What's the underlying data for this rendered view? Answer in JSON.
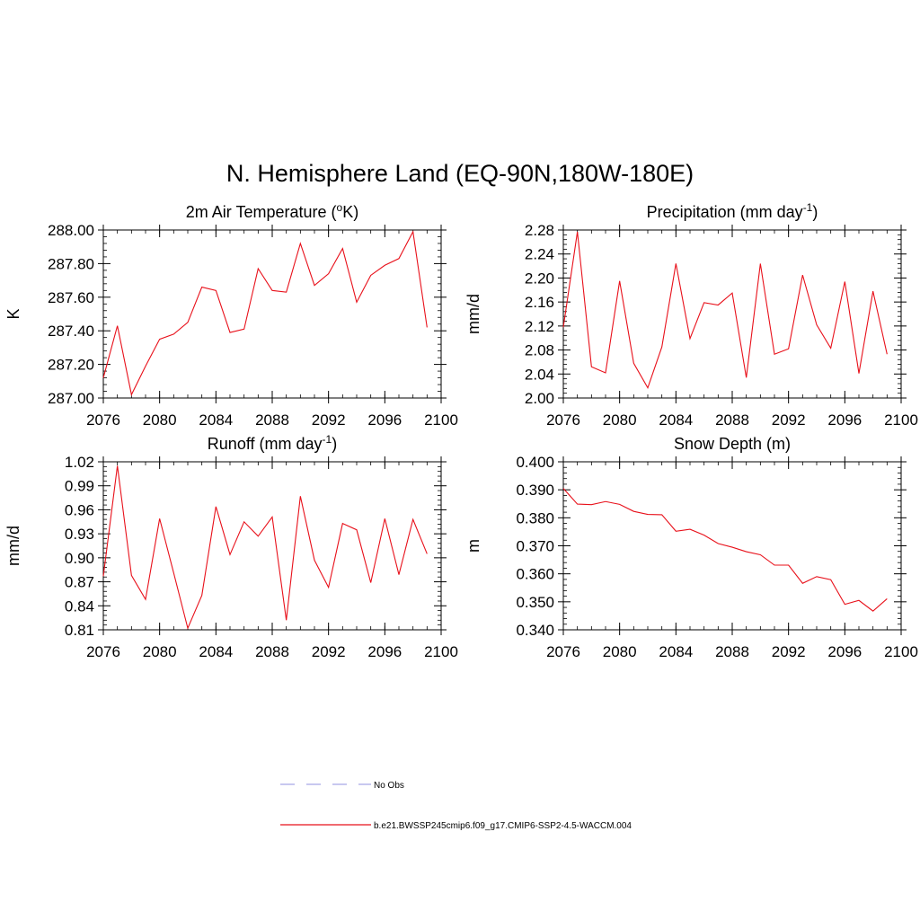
{
  "figure": {
    "title": "N. Hemisphere Land (EQ-90N,180W-180E)"
  },
  "colors": {
    "model_line": "#e8101a",
    "obs_line": "#a7a7e6",
    "axis": "#000000",
    "background": "#ffffff"
  },
  "chart_data": [
    {
      "type": "line",
      "id": "tas",
      "title": "2m Air Temperature (",
      "title_sup": "o",
      "title_tail": "K)",
      "xlabel": "",
      "ylabel": "K",
      "xlim": [
        2076,
        2100
      ],
      "ylim": [
        287.0,
        288.0
      ],
      "xticks": [
        2076,
        2080,
        2084,
        2088,
        2092,
        2096,
        2100
      ],
      "yticks": [
        287.0,
        287.2,
        287.4,
        287.6,
        287.8,
        288.0
      ],
      "ytick_labels": [
        "287.00",
        "287.20",
        "287.40",
        "287.60",
        "287.80",
        "288.00"
      ],
      "x": [
        2076,
        2077,
        2078,
        2079,
        2080,
        2081,
        2082,
        2083,
        2084,
        2085,
        2086,
        2087,
        2088,
        2089,
        2090,
        2091,
        2092,
        2093,
        2094,
        2095,
        2096,
        2097,
        2098,
        2099
      ],
      "series": [
        {
          "values": [
            287.12,
            287.43,
            287.02,
            287.19,
            287.35,
            287.38,
            287.45,
            287.66,
            287.64,
            287.39,
            287.41,
            287.77,
            287.64,
            287.63,
            287.92,
            287.67,
            287.74,
            287.89,
            287.57,
            287.73,
            287.79,
            287.83,
            287.99,
            287.42
          ]
        }
      ]
    },
    {
      "type": "line",
      "id": "precip",
      "title": "Precipitation (mm day",
      "title_sup": "-1",
      "title_tail": ")",
      "xlabel": "",
      "ylabel": "mm/d",
      "xlim": [
        2076,
        2100
      ],
      "ylim": [
        2.0,
        2.28
      ],
      "xticks": [
        2076,
        2080,
        2084,
        2088,
        2092,
        2096,
        2100
      ],
      "yticks": [
        2.0,
        2.04,
        2.08,
        2.12,
        2.16,
        2.2,
        2.24,
        2.28
      ],
      "ytick_labels": [
        "2.00",
        "2.04",
        "2.08",
        "2.12",
        "2.16",
        "2.20",
        "2.24",
        "2.28"
      ],
      "x": [
        2076,
        2077,
        2078,
        2079,
        2080,
        2081,
        2082,
        2083,
        2084,
        2085,
        2086,
        2087,
        2088,
        2089,
        2090,
        2091,
        2092,
        2093,
        2094,
        2095,
        2096,
        2097,
        2098,
        2099
      ],
      "series": [
        {
          "values": [
            2.118,
            2.277,
            2.052,
            2.042,
            2.195,
            2.058,
            2.017,
            2.085,
            2.224,
            2.099,
            2.159,
            2.155,
            2.175,
            2.034,
            2.224,
            2.073,
            2.082,
            2.205,
            2.122,
            2.083,
            2.194,
            2.041,
            2.178,
            2.073
          ]
        }
      ]
    },
    {
      "type": "line",
      "id": "runoff",
      "title": "Runoff (mm day",
      "title_sup": "-1",
      "title_tail": ")",
      "xlabel": "",
      "ylabel": "mm/d",
      "xlim": [
        2076,
        2100
      ],
      "ylim": [
        0.81,
        1.02
      ],
      "xticks": [
        2076,
        2080,
        2084,
        2088,
        2092,
        2096,
        2100
      ],
      "yticks": [
        0.81,
        0.84,
        0.87,
        0.9,
        0.93,
        0.96,
        0.99,
        1.02
      ],
      "ytick_labels": [
        "0.81",
        "0.84",
        "0.87",
        "0.90",
        "0.93",
        "0.96",
        "0.99",
        "1.02"
      ],
      "x": [
        2076,
        2077,
        2078,
        2079,
        2080,
        2081,
        2082,
        2083,
        2084,
        2085,
        2086,
        2087,
        2088,
        2089,
        2090,
        2091,
        2092,
        2093,
        2094,
        2095,
        2096,
        2097,
        2098,
        2099
      ],
      "series": [
        {
          "values": [
            0.877,
            1.015,
            0.878,
            0.848,
            0.949,
            0.881,
            0.812,
            0.853,
            0.964,
            0.904,
            0.945,
            0.927,
            0.951,
            0.822,
            0.977,
            0.897,
            0.863,
            0.943,
            0.935,
            0.869,
            0.949,
            0.879,
            0.948,
            0.905
          ]
        }
      ]
    },
    {
      "type": "line",
      "id": "snowdepth",
      "title": "Snow Depth (m)",
      "title_sup": "",
      "title_tail": "",
      "xlabel": "",
      "ylabel": "m",
      "xlim": [
        2076,
        2100
      ],
      "ylim": [
        0.34,
        0.4
      ],
      "xticks": [
        2076,
        2080,
        2084,
        2088,
        2092,
        2096,
        2100
      ],
      "yticks": [
        0.34,
        0.35,
        0.36,
        0.37,
        0.38,
        0.39,
        0.4
      ],
      "ytick_labels": [
        "0.340",
        "0.350",
        "0.360",
        "0.370",
        "0.380",
        "0.390",
        "0.400"
      ],
      "x": [
        2076,
        2077,
        2078,
        2079,
        2080,
        2081,
        2082,
        2083,
        2084,
        2085,
        2086,
        2087,
        2088,
        2089,
        2090,
        2091,
        2092,
        2093,
        2094,
        2095,
        2096,
        2097,
        2098,
        2099
      ],
      "series": [
        {
          "values": [
            0.3905,
            0.3849,
            0.3847,
            0.3858,
            0.3848,
            0.3823,
            0.3812,
            0.3811,
            0.3752,
            0.3759,
            0.3738,
            0.3708,
            0.3695,
            0.3679,
            0.3668,
            0.3631,
            0.3631,
            0.3566,
            0.359,
            0.3579,
            0.3491,
            0.3505,
            0.3467,
            0.3511
          ]
        }
      ]
    }
  ],
  "legend": {
    "items": [
      {
        "label": "No Obs",
        "style": "dashed"
      },
      {
        "label": "b.e21.BWSSP245cmip6.f09_g17.CMIP6-SSP2-4.5-WACCM.004",
        "style": "solid"
      }
    ]
  }
}
